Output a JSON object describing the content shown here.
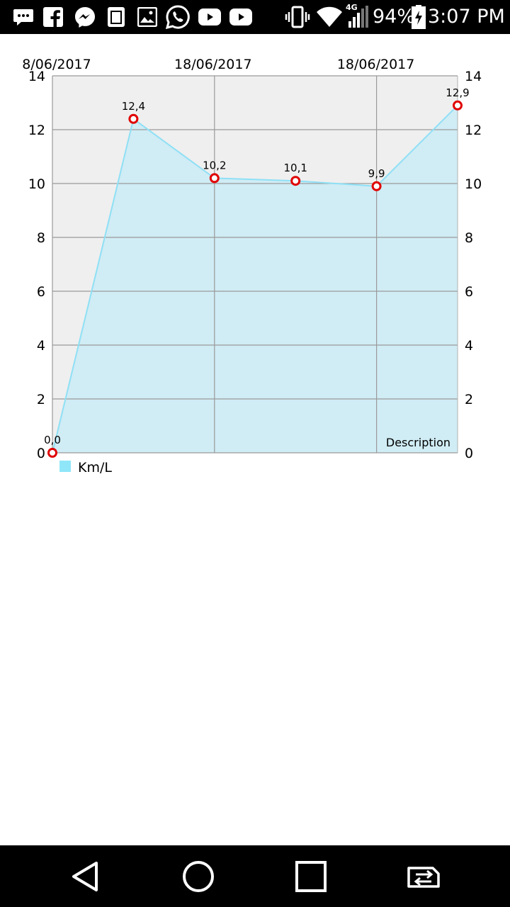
{
  "status_bar": {
    "time": "3:07 PM",
    "battery": "94%",
    "network": "4G",
    "left_icons": [
      "chat-icon",
      "facebook-icon",
      "messenger-icon",
      "clipboard-icon",
      "gallery-icon",
      "whatsapp-icon",
      "youtube-icon",
      "youtube-icon"
    ],
    "right_icons": [
      "vibrate-icon",
      "wifi-icon",
      "signal-icon",
      "battery-charging-icon"
    ]
  },
  "chart_data": {
    "type": "area",
    "x_labels_top": [
      "8/06/2017",
      "18/06/2017",
      "18/06/2017"
    ],
    "values": [
      0.0,
      12.4,
      10.2,
      10.1,
      9.9,
      12.9
    ],
    "data_labels": [
      "0,0",
      "12,4",
      "10,2",
      "10,1",
      "9,9",
      "12,9"
    ],
    "y_ticks": [
      "0",
      "2",
      "4",
      "6",
      "8",
      "10",
      "12",
      "14"
    ],
    "ylim": [
      0,
      14
    ],
    "description": "Description",
    "legend": {
      "label": "Km/L",
      "position": "bottom-left"
    },
    "colors": {
      "fill": "#d0ecf5",
      "line": "#8fe0f5",
      "point": "#e00000",
      "plot_bg": "#efefef",
      "grid": "#9a9a9a",
      "legend_swatch": "#8fe6f8"
    },
    "grid": true
  },
  "nav_bar": {
    "buttons": [
      "back",
      "home",
      "recents",
      "switch-sim"
    ]
  }
}
